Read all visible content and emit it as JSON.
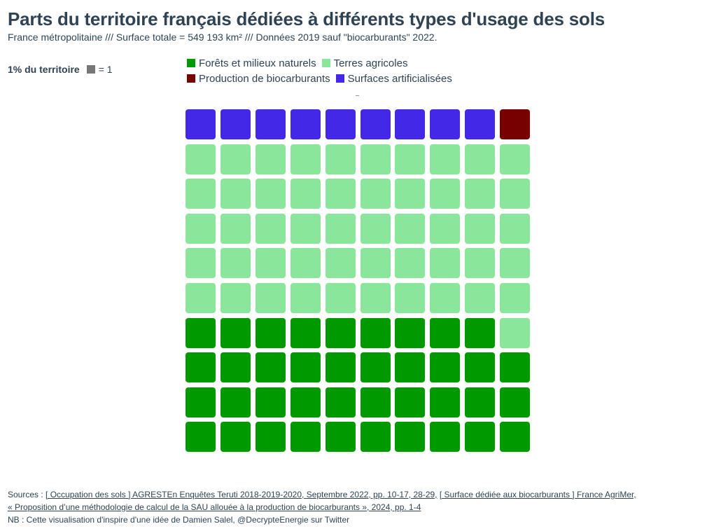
{
  "title": "Parts du territoire français dédiées à différents types d'usage des sols",
  "subtitle": "France métropolitaine /// Surface totale = 549 193 km² /// Données 2019 sauf \"biocarburants\" 2022.",
  "unit_legend": {
    "label": "1% du territoire",
    "value": "= 1"
  },
  "legend": [
    {
      "name": "Forêts et milieux naturels",
      "color": "#009900"
    },
    {
      "name": "Terres agricoles",
      "color": "#8ae69a"
    },
    {
      "name": "Production de biocarburants",
      "color": "#770000"
    },
    {
      "name": "Surfaces artificialisées",
      "color": "#4328e7"
    }
  ],
  "footer": {
    "sources_prefix": "Sources : ",
    "source1": "[ Occupation des sols ] AGRESTEn Enquêtes Teruti 2018-2019-2020, Septembre 2022, pp. 10-17, 28-29,",
    "source2a": "[ Surface dédiée aux biocarburants ] France AgriMer,",
    "source2b": "« Proposition d’une méthodologie de calcul de la SAU allouée à la production de biocarburants », 2024, pp. 1-4",
    "nb": "NB : Cette visualisation d'inspire d'une idée de Damien Salel, @DecrypteEnergie sur Twitter"
  },
  "chart_data": {
    "type": "waffle",
    "grid": {
      "rows": 10,
      "cols": 10
    },
    "unit": "1% du territoire",
    "fill_order": "bottom-to-top, left-to-right",
    "series": [
      {
        "name": "Forêts et milieux naturels",
        "value": 39,
        "color": "#009900"
      },
      {
        "name": "Terres agricoles",
        "value": 51,
        "color": "#8ae69a"
      },
      {
        "name": "Surfaces artificialisées",
        "value": 9,
        "color": "#4328e7"
      },
      {
        "name": "Production de biocarburants",
        "value": 1,
        "color": "#770000"
      }
    ]
  }
}
